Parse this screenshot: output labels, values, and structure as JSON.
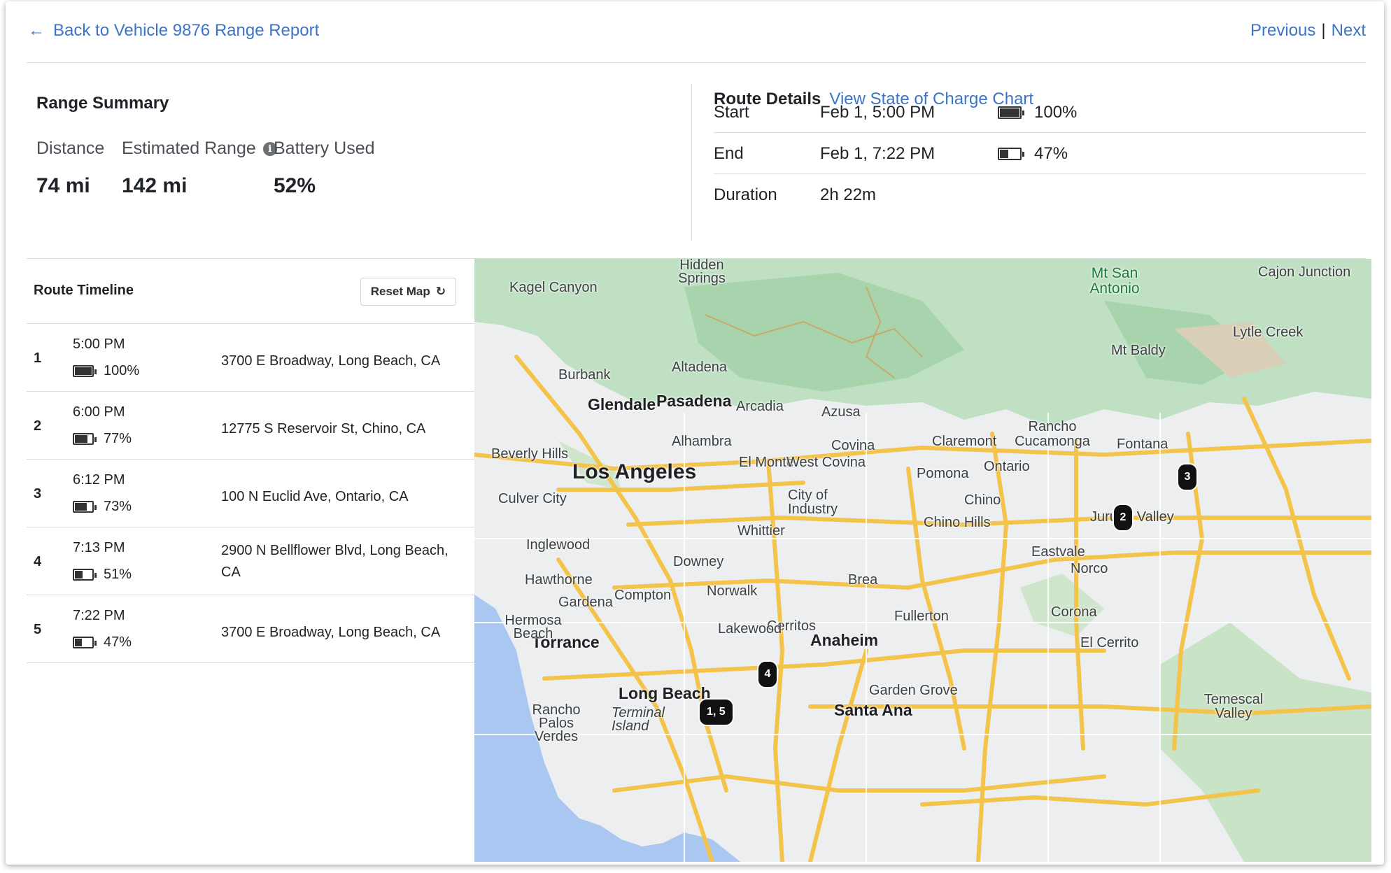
{
  "nav": {
    "back_label": "Back to Vehicle 9876 Range Report",
    "previous_label": "Previous",
    "separator": "|",
    "next_label": "Next"
  },
  "summary": {
    "title": "Range Summary",
    "distance": {
      "label": "Distance",
      "value": "74 mi"
    },
    "estimated_range": {
      "label": "Estimated Range",
      "value": "142 mi"
    },
    "battery_used": {
      "label": "Battery Used",
      "value": "52%"
    }
  },
  "route_details": {
    "title": "Route Details",
    "chart_link": "View State of Charge Chart",
    "start": {
      "label": "Start",
      "time": "Feb 1, 5:00 PM",
      "battery": "100%",
      "battery_fraction": 1.0
    },
    "end": {
      "label": "End",
      "time": "Feb 1, 7:22 PM",
      "battery": "47%",
      "battery_fraction": 0.47
    },
    "duration": {
      "label": "Duration",
      "value": "2h 22m"
    }
  },
  "timeline": {
    "title": "Route Timeline",
    "reset_label": "Reset Map",
    "stops": [
      {
        "num": "1",
        "time": "5:00 PM",
        "battery": "100%",
        "battery_fraction": 1.0,
        "address": "3700 E Broadway, Long Beach, CA"
      },
      {
        "num": "2",
        "time": "6:00 PM",
        "battery": "77%",
        "battery_fraction": 0.77,
        "address": "12775 S Reservoir St, Chino, CA"
      },
      {
        "num": "3",
        "time": "6:12 PM",
        "battery": "73%",
        "battery_fraction": 0.73,
        "address": "100 N Euclid Ave, Ontario, CA"
      },
      {
        "num": "4",
        "time": "7:13 PM",
        "battery": "51%",
        "battery_fraction": 0.51,
        "address": "2900 N Bellflower Blvd, Long Beach, CA"
      },
      {
        "num": "5",
        "time": "7:22 PM",
        "battery": "47%",
        "battery_fraction": 0.47,
        "address": "3700 E Broadway, Long Beach, CA"
      }
    ]
  },
  "map": {
    "markers": [
      "3",
      "2",
      "4",
      "1, 5"
    ],
    "labels": [
      "Los Angeles",
      "Glendale",
      "Pasadena",
      "Anaheim",
      "Santa Ana",
      "Long Beach",
      "Torrance",
      "Burbank",
      "Altadena",
      "Arcadia",
      "Azusa",
      "Covina",
      "Claremont",
      "Rancho Cucamonga",
      "Fontana",
      "Ontario",
      "Pomona",
      "Chino",
      "Chino Hills",
      "Alhambra",
      "El Monte",
      "West Covina",
      "City of Industry",
      "Beverly Hills",
      "Culver City",
      "Inglewood",
      "Hawthorne",
      "Gardena",
      "Compton",
      "Downey",
      "Whittier",
      "Norwalk",
      "Brea",
      "Fullerton",
      "Cerritos",
      "Lakewood",
      "Garden Grove",
      "Eastvale",
      "Norco",
      "Corona",
      "El Cerrito",
      "Jurupa Valley",
      "Temescal Valley",
      "Mt Baldy",
      "Lytle Creek",
      "Cajon Junction",
      "Mt San Antonio",
      "Kagel Canyon",
      "Hidden Springs",
      "Hermosa Beach",
      "Rancho Palos Verdes",
      "Terminal Island"
    ]
  }
}
